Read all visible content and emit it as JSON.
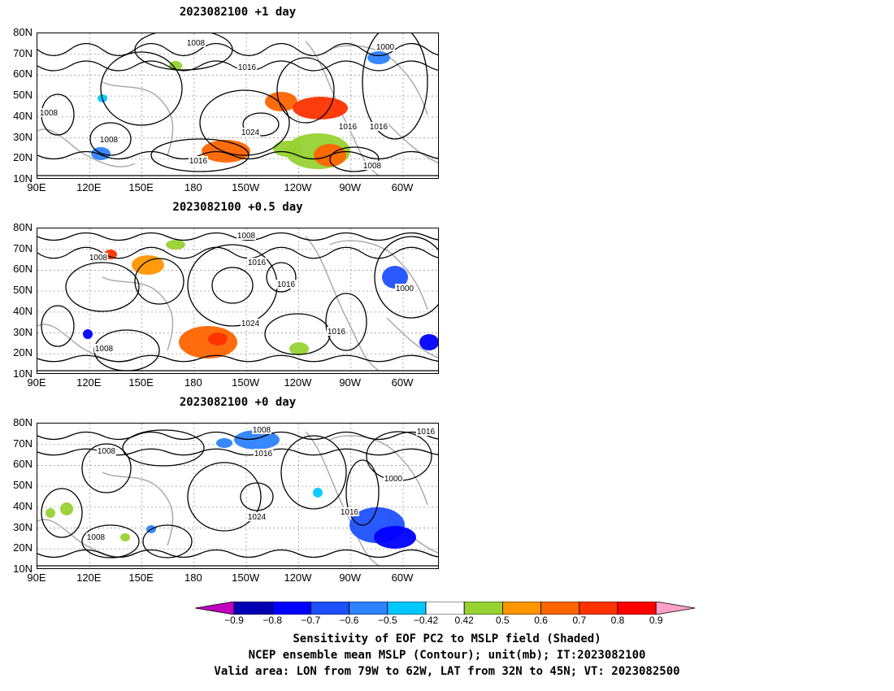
{
  "panels": [
    {
      "title": "2023082100 +1 day",
      "contour_labels": [
        "1008",
        "1000",
        "1016",
        "1008",
        "1024",
        "1008",
        "1016",
        "1016",
        "1016",
        "1008"
      ]
    },
    {
      "title": "2023082100 +0.5 day",
      "contour_labels": [
        "1008",
        "1008",
        "1016",
        "1016",
        "1000",
        "1024",
        "1016",
        "1008"
      ]
    },
    {
      "title": "2023082100 +0 day",
      "contour_labels": [
        "1008",
        "1008",
        "1016",
        "1016",
        "1000",
        "1024",
        "1016",
        "1008"
      ]
    }
  ],
  "axes": {
    "y_ticks": [
      "80N",
      "70N",
      "60N",
      "50N",
      "40N",
      "30N",
      "20N",
      "10N"
    ],
    "x_ticks": [
      "90E",
      "120E",
      "150E",
      "180",
      "150W",
      "120W",
      "90W",
      "60W"
    ]
  },
  "colorbar": {
    "ticks": [
      "−0.9",
      "−0.8",
      "−0.7",
      "−0.6",
      "−0.5",
      "−0.42",
      "0.42",
      "0.5",
      "0.6",
      "0.7",
      "0.8",
      "0.9"
    ],
    "colors": [
      "#c000c0",
      "#0000b4",
      "#0000ff",
      "#1e50ff",
      "#2d82ff",
      "#00c8ff",
      "#ffffff",
      "#96d232",
      "#ff9600",
      "#ff6400",
      "#ff3200",
      "#ff0000",
      "#ffa0c8"
    ]
  },
  "caption": {
    "line1": "Sensitivity of EOF PC2 to MSLP field (Shaded)",
    "line2": "NCEP ensemble mean MSLP (Contour); unit(mb); IT:2023082100",
    "line3": "Valid area: LON from 79W to 62W, LAT from 32N to 45N; VT: 2023082500"
  }
}
